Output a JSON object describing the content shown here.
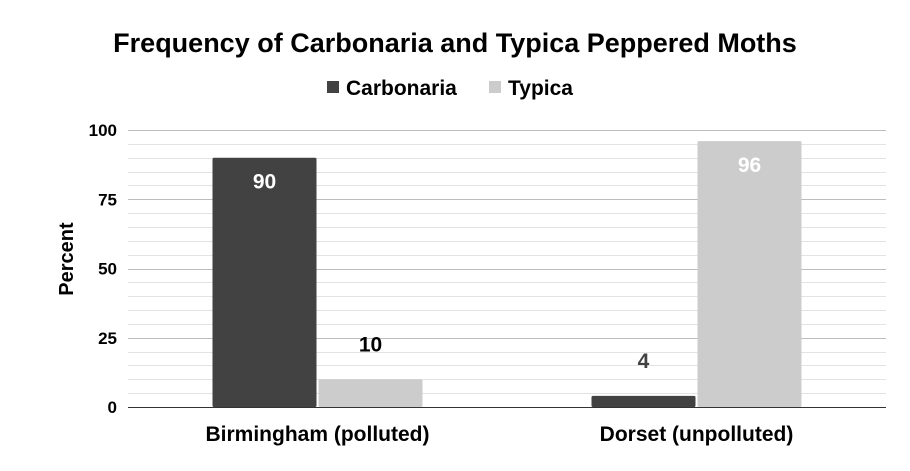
{
  "chart_data": {
    "type": "bar",
    "title": "Frequency of Carbonaria and Typica Peppered Moths",
    "xlabel": "",
    "ylabel": "Percent",
    "categories": [
      "Birmingham (polluted)",
      "Dorset (unpolluted)"
    ],
    "series": [
      {
        "name": "Carbonaria",
        "values": [
          90,
          4
        ],
        "color": "#424242"
      },
      {
        "name": "Typica",
        "values": [
          10,
          96
        ],
        "color": "#cccccc"
      }
    ],
    "ylim": [
      0,
      100
    ],
    "yticks": [
      0,
      25,
      50,
      75,
      100
    ],
    "grid": true,
    "legend_position": "top",
    "data_labels": [
      "90",
      "10",
      "4",
      "96"
    ],
    "data_label_colors": {
      "inside": "#ffffff",
      "outside": "#424242",
      "outside_light": "#000000"
    }
  }
}
